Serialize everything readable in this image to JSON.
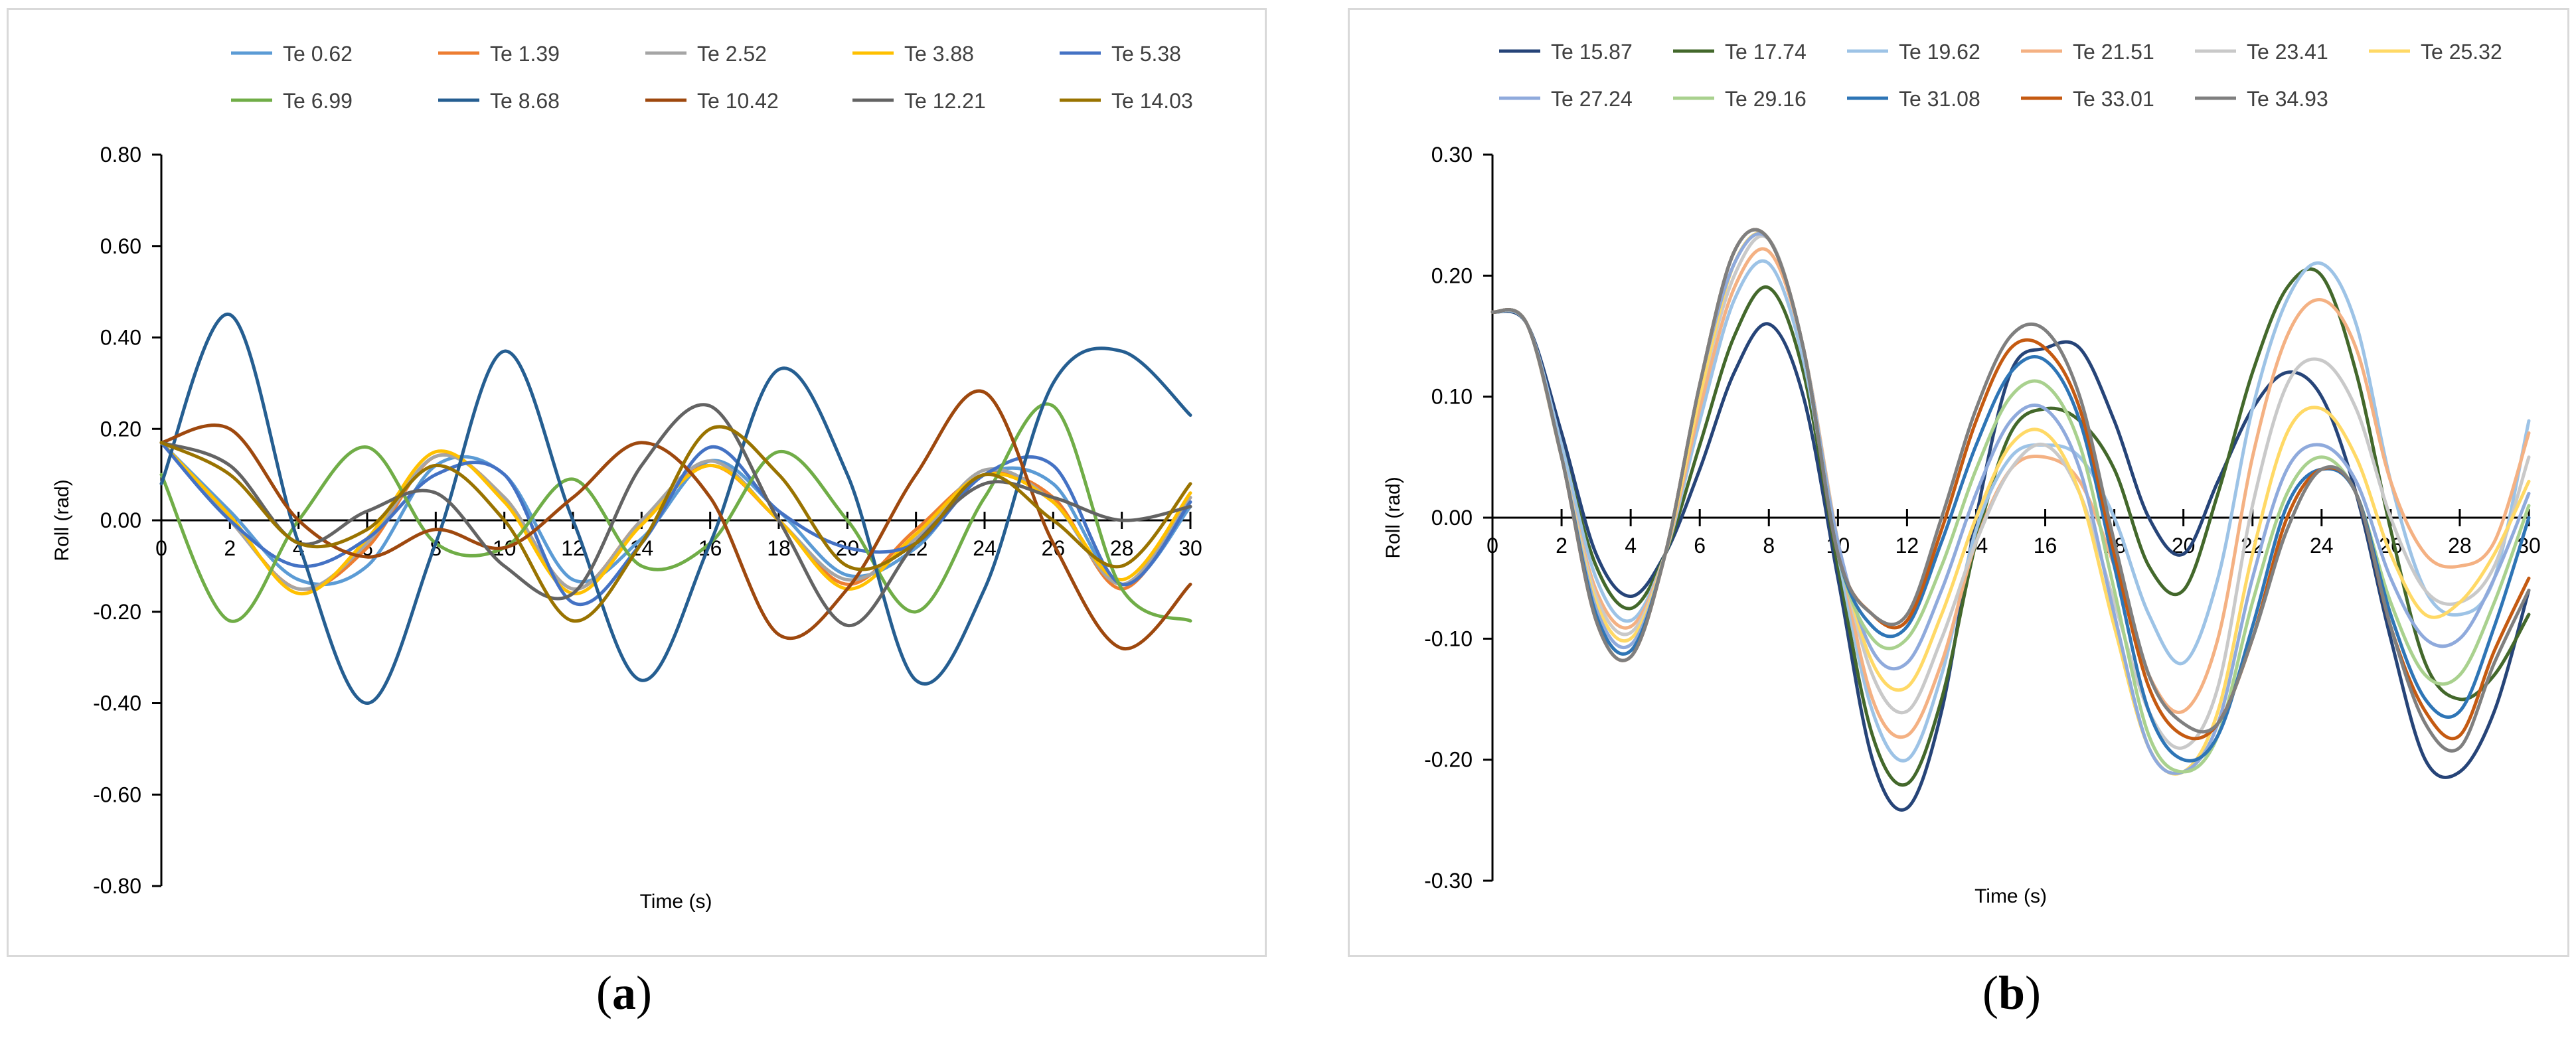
{
  "captions": {
    "a_open": "(",
    "a_letter": "a",
    "a_close": ")",
    "b_open": "(",
    "b_letter": "b",
    "b_close": ")"
  },
  "chart_data": [
    {
      "type": "line",
      "panel": "a",
      "xlabel": "Time (s)",
      "ylabel": "Roll (rad)",
      "xlim": [
        0,
        30
      ],
      "ylim": [
        -0.8,
        0.8
      ],
      "x_ticks": [
        0,
        2,
        4,
        6,
        8,
        10,
        12,
        14,
        16,
        18,
        20,
        22,
        24,
        26,
        28,
        30
      ],
      "x_tick_labels": [
        "0",
        "2",
        "4",
        "6",
        "8",
        "10",
        "12",
        "14",
        "16",
        "18",
        "20",
        "22",
        "24",
        "26",
        "28",
        "30"
      ],
      "y_ticks": [
        -0.8,
        -0.6,
        -0.4,
        -0.2,
        0,
        0.2,
        0.4,
        0.6,
        0.8
      ],
      "y_tick_labels": [
        "-0.80",
        "-0.60",
        "-0.40",
        "-0.20",
        "0.00",
        "0.20",
        "0.40",
        "0.60",
        "0.80"
      ],
      "grid": false,
      "legend_position": "top",
      "x": [
        0,
        2,
        4,
        6,
        8,
        10,
        12,
        14,
        16,
        18,
        20,
        22,
        24,
        26,
        28,
        30
      ],
      "series": [
        {
          "name": "Te 0.62",
          "color": "#5b9bd5",
          "values": [
            0.17,
            0.02,
            -0.13,
            -0.1,
            0.12,
            0.1,
            -0.13,
            -0.04,
            0.13,
            0.02,
            -0.12,
            -0.06,
            0.1,
            0.08,
            -0.14,
            0.03
          ]
        },
        {
          "name": "Te 1.39",
          "color": "#ed7d31",
          "values": [
            0.17,
            0.0,
            -0.15,
            -0.06,
            0.14,
            0.05,
            -0.15,
            0.0,
            0.12,
            0.0,
            -0.14,
            -0.02,
            0.1,
            0.05,
            -0.15,
            0.05
          ]
        },
        {
          "name": "Te 2.52",
          "color": "#a5a5a5",
          "values": [
            0.17,
            0.0,
            -0.15,
            -0.05,
            0.14,
            0.05,
            -0.15,
            0.0,
            0.13,
            0.0,
            -0.13,
            -0.04,
            0.11,
            0.04,
            -0.14,
            0.05
          ]
        },
        {
          "name": "Te 3.88",
          "color": "#ffc000",
          "values": [
            0.17,
            0.01,
            -0.16,
            -0.04,
            0.15,
            0.04,
            -0.16,
            -0.01,
            0.12,
            0.0,
            -0.15,
            -0.03,
            0.1,
            0.04,
            -0.13,
            0.06
          ]
        },
        {
          "name": "Te 5.38",
          "color": "#4472c4",
          "values": [
            0.17,
            0.0,
            -0.1,
            -0.04,
            0.1,
            0.1,
            -0.18,
            -0.05,
            0.16,
            0.02,
            -0.06,
            -0.05,
            0.1,
            0.12,
            -0.14,
            0.04
          ]
        },
        {
          "name": "Te 6.99",
          "color": "#70ad47",
          "values": [
            0.1,
            -0.22,
            0.0,
            0.16,
            -0.05,
            -0.06,
            0.09,
            -0.1,
            -0.05,
            0.15,
            0.0,
            -0.2,
            0.05,
            0.25,
            -0.15,
            -0.22
          ]
        },
        {
          "name": "Te 8.68",
          "color": "#255e91",
          "values": [
            0.08,
            0.45,
            -0.05,
            -0.4,
            -0.05,
            0.37,
            0.0,
            -0.35,
            -0.05,
            0.33,
            0.1,
            -0.35,
            -0.15,
            0.3,
            0.37,
            0.23
          ]
        },
        {
          "name": "Te 10.42",
          "color": "#9e480e",
          "values": [
            0.17,
            0.2,
            0.0,
            -0.08,
            -0.02,
            -0.06,
            0.05,
            0.17,
            0.05,
            -0.25,
            -0.15,
            0.1,
            0.28,
            -0.05,
            -0.28,
            -0.14
          ]
        },
        {
          "name": "Te 12.21",
          "color": "#636363",
          "values": [
            0.17,
            0.12,
            -0.05,
            0.02,
            0.06,
            -0.1,
            -0.16,
            0.12,
            0.25,
            0.0,
            -0.23,
            -0.05,
            0.08,
            0.05,
            0.0,
            0.03
          ]
        },
        {
          "name": "Te 14.03",
          "color": "#997300",
          "values": [
            0.17,
            0.1,
            -0.05,
            -0.02,
            0.12,
            0.0,
            -0.22,
            -0.05,
            0.2,
            0.1,
            -0.1,
            -0.05,
            0.1,
            0.0,
            -0.1,
            0.08
          ]
        }
      ]
    },
    {
      "type": "line",
      "panel": "b",
      "xlabel": "Time (s)",
      "ylabel": "Roll (rad)",
      "xlim": [
        0,
        30
      ],
      "ylim": [
        -0.3,
        0.3
      ],
      "x_ticks": [
        0,
        2,
        4,
        6,
        8,
        10,
        12,
        14,
        16,
        18,
        20,
        22,
        24,
        26,
        28,
        30
      ],
      "x_tick_labels": [
        "0",
        "2",
        "4",
        "6",
        "8",
        "10",
        "12",
        "14",
        "16",
        "18",
        "20",
        "22",
        "24",
        "26",
        "28",
        "30"
      ],
      "y_ticks": [
        -0.3,
        -0.2,
        -0.1,
        0,
        0.1,
        0.2,
        0.3
      ],
      "y_tick_labels": [
        "-0.30",
        "-0.20",
        "-0.10",
        "0.00",
        "0.10",
        "0.20",
        "0.30"
      ],
      "grid": false,
      "legend_position": "top",
      "x": [
        0,
        1,
        2,
        3,
        4,
        5,
        6,
        7,
        8,
        9,
        10,
        11,
        12,
        13,
        14,
        15,
        16,
        17,
        18,
        19,
        20,
        21,
        22,
        23,
        24,
        25,
        26,
        27,
        28,
        29,
        30
      ],
      "series": [
        {
          "name": "Te 15.87",
          "color": "#264478",
          "values": [
            0.17,
            0.16,
            0.07,
            -0.03,
            -0.065,
            -0.03,
            0.04,
            0.12,
            0.16,
            0.1,
            -0.05,
            -0.2,
            -0.24,
            -0.16,
            0.0,
            0.12,
            0.14,
            0.14,
            0.08,
            0.0,
            -0.03,
            0.03,
            0.09,
            0.12,
            0.1,
            0.02,
            -0.1,
            -0.2,
            -0.21,
            -0.16,
            -0.06
          ]
        },
        {
          "name": "Te 17.74",
          "color": "#43682b",
          "values": [
            0.17,
            0.16,
            0.06,
            -0.04,
            -0.075,
            -0.03,
            0.06,
            0.15,
            0.19,
            0.12,
            -0.04,
            -0.18,
            -0.22,
            -0.15,
            -0.02,
            0.07,
            0.09,
            0.08,
            0.04,
            -0.04,
            -0.06,
            0.02,
            0.12,
            0.19,
            0.2,
            0.12,
            -0.01,
            -0.12,
            -0.15,
            -0.13,
            -0.08
          ]
        },
        {
          "name": "Te 19.62",
          "color": "#9dc3e6",
          "values": [
            0.17,
            0.16,
            0.06,
            -0.05,
            -0.085,
            -0.03,
            0.08,
            0.18,
            0.21,
            0.13,
            -0.03,
            -0.16,
            -0.2,
            -0.13,
            -0.01,
            0.05,
            0.06,
            0.05,
            0.0,
            -0.08,
            -0.12,
            -0.05,
            0.09,
            0.18,
            0.21,
            0.16,
            0.03,
            -0.06,
            -0.08,
            -0.05,
            0.08
          ]
        },
        {
          "name": "Te 21.51",
          "color": "#f4b183",
          "values": [
            0.17,
            0.16,
            0.05,
            -0.06,
            -0.09,
            -0.03,
            0.09,
            0.19,
            0.22,
            0.14,
            -0.02,
            -0.15,
            -0.18,
            -0.12,
            -0.02,
            0.04,
            0.05,
            0.03,
            -0.04,
            -0.13,
            -0.16,
            -0.1,
            0.05,
            0.15,
            0.18,
            0.14,
            0.03,
            -0.03,
            -0.04,
            -0.02,
            0.07
          ]
        },
        {
          "name": "Te 23.41",
          "color": "#c9c9c9",
          "values": [
            0.17,
            0.16,
            0.05,
            -0.065,
            -0.095,
            -0.03,
            0.1,
            0.2,
            0.23,
            0.14,
            -0.02,
            -0.13,
            -0.16,
            -0.1,
            -0.02,
            0.04,
            0.06,
            0.02,
            -0.07,
            -0.16,
            -0.19,
            -0.14,
            0.01,
            0.11,
            0.13,
            0.09,
            0.0,
            -0.06,
            -0.07,
            -0.04,
            0.05
          ]
        },
        {
          "name": "Te 25.32",
          "color": "#ffd966",
          "values": [
            0.17,
            0.16,
            0.05,
            -0.07,
            -0.1,
            -0.03,
            0.1,
            0.21,
            0.23,
            0.14,
            -0.02,
            -0.12,
            -0.14,
            -0.08,
            0.0,
            0.06,
            0.07,
            0.02,
            -0.09,
            -0.19,
            -0.21,
            -0.16,
            -0.03,
            0.07,
            0.09,
            0.05,
            -0.03,
            -0.08,
            -0.07,
            -0.03,
            0.03
          ]
        },
        {
          "name": "Te 27.24",
          "color": "#8faadc",
          "values": [
            0.17,
            0.16,
            0.05,
            -0.075,
            -0.105,
            -0.03,
            0.11,
            0.21,
            0.23,
            0.14,
            -0.02,
            -0.11,
            -0.12,
            -0.06,
            0.02,
            0.08,
            0.09,
            0.04,
            -0.08,
            -0.19,
            -0.21,
            -0.17,
            -0.05,
            0.04,
            0.06,
            0.03,
            -0.05,
            -0.1,
            -0.1,
            -0.05,
            0.02
          ]
        },
        {
          "name": "Te 29.16",
          "color": "#a9d18e",
          "values": [
            0.17,
            0.16,
            0.05,
            -0.08,
            -0.11,
            -0.03,
            0.11,
            0.22,
            0.23,
            0.14,
            -0.03,
            -0.1,
            -0.1,
            -0.04,
            0.04,
            0.1,
            0.11,
            0.06,
            -0.06,
            -0.18,
            -0.21,
            -0.18,
            -0.07,
            0.02,
            0.05,
            0.02,
            -0.07,
            -0.13,
            -0.13,
            -0.07,
            0.01
          ]
        },
        {
          "name": "Te 31.08",
          "color": "#2e75b6",
          "values": [
            0.17,
            0.16,
            0.05,
            -0.08,
            -0.11,
            -0.03,
            0.11,
            0.22,
            0.23,
            0.14,
            -0.03,
            -0.09,
            -0.09,
            -0.02,
            0.06,
            0.12,
            0.13,
            0.08,
            -0.04,
            -0.16,
            -0.2,
            -0.18,
            -0.09,
            0.01,
            0.04,
            0.02,
            -0.08,
            -0.15,
            -0.16,
            -0.09,
            0.0
          ]
        },
        {
          "name": "Te 33.01",
          "color": "#c55a11",
          "values": [
            0.17,
            0.16,
            0.05,
            -0.085,
            -0.115,
            -0.03,
            0.11,
            0.22,
            0.23,
            0.14,
            -0.03,
            -0.08,
            -0.085,
            -0.01,
            0.08,
            0.14,
            0.14,
            0.09,
            -0.03,
            -0.14,
            -0.18,
            -0.17,
            -0.1,
            0.0,
            0.04,
            0.02,
            -0.09,
            -0.16,
            -0.18,
            -0.11,
            -0.05
          ]
        },
        {
          "name": "Te 34.93",
          "color": "#7f7f7f",
          "values": [
            0.17,
            0.16,
            0.05,
            -0.085,
            -0.115,
            -0.03,
            0.11,
            0.22,
            0.23,
            0.14,
            -0.03,
            -0.08,
            -0.08,
            0.0,
            0.09,
            0.15,
            0.155,
            0.1,
            -0.02,
            -0.13,
            -0.17,
            -0.17,
            -0.1,
            -0.01,
            0.04,
            0.02,
            -0.09,
            -0.17,
            -0.19,
            -0.12,
            -0.06
          ]
        }
      ]
    }
  ]
}
